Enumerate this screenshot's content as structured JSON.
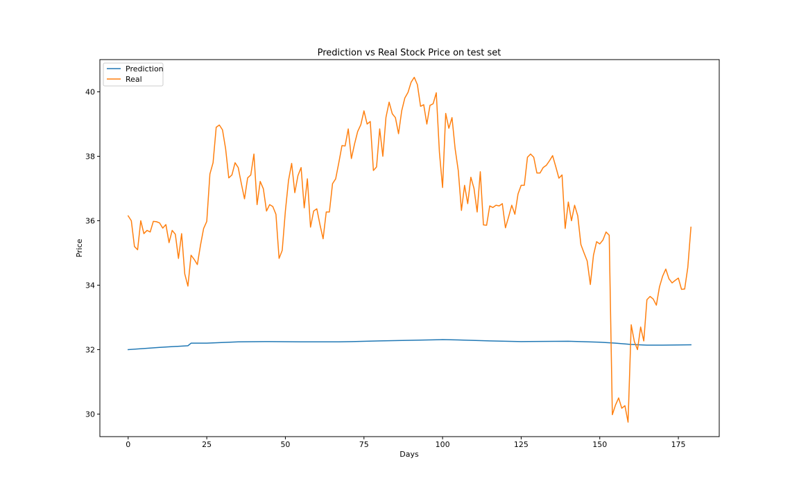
{
  "chart_data": {
    "type": "line",
    "title": "Prediction vs Real Stock Price on test set",
    "xlabel": "Days",
    "ylabel": "Price",
    "xlim": [
      -9,
      188
    ],
    "ylim": [
      29.3,
      41.0
    ],
    "xticks": [
      0,
      25,
      50,
      75,
      100,
      125,
      150,
      175
    ],
    "yticks": [
      30,
      32,
      34,
      36,
      38,
      40
    ],
    "grid": false,
    "legend_position": "top-left",
    "series": [
      {
        "name": "Prediction",
        "color": "#1f77b4",
        "points": [
          [
            0,
            32.0
          ],
          [
            10,
            32.07
          ],
          [
            19,
            32.12
          ],
          [
            20,
            32.2
          ],
          [
            25,
            32.2
          ],
          [
            35,
            32.24
          ],
          [
            45,
            32.25
          ],
          [
            55,
            32.24
          ],
          [
            67,
            32.24
          ],
          [
            80,
            32.27
          ],
          [
            90,
            32.29
          ],
          [
            100,
            32.31
          ],
          [
            105,
            32.3
          ],
          [
            115,
            32.27
          ],
          [
            125,
            32.25
          ],
          [
            140,
            32.26
          ],
          [
            150,
            32.23
          ],
          [
            155,
            32.2
          ],
          [
            160,
            32.16
          ],
          [
            165,
            32.14
          ],
          [
            170,
            32.14
          ],
          [
            179,
            32.15
          ]
        ]
      },
      {
        "name": "Real",
        "color": "#ff7f0e",
        "points": [
          [
            0,
            36.15
          ],
          [
            1,
            36.0
          ],
          [
            2,
            35.2
          ],
          [
            3,
            35.1
          ],
          [
            4,
            36.0
          ],
          [
            5,
            35.6
          ],
          [
            6,
            35.7
          ],
          [
            7,
            35.65
          ],
          [
            8,
            35.98
          ],
          [
            9,
            35.97
          ],
          [
            10,
            35.93
          ],
          [
            11,
            35.77
          ],
          [
            12,
            35.88
          ],
          [
            13,
            35.32
          ],
          [
            14,
            35.7
          ],
          [
            15,
            35.58
          ],
          [
            16,
            34.83
          ],
          [
            17,
            35.6
          ],
          [
            18,
            34.35
          ],
          [
            19,
            33.97
          ],
          [
            20,
            34.93
          ],
          [
            21,
            34.8
          ],
          [
            22,
            34.64
          ],
          [
            23,
            35.24
          ],
          [
            24,
            35.76
          ],
          [
            25,
            35.98
          ],
          [
            26,
            37.45
          ],
          [
            27,
            37.8
          ],
          [
            28,
            38.9
          ],
          [
            29,
            38.97
          ],
          [
            30,
            38.82
          ],
          [
            31,
            38.23
          ],
          [
            32,
            37.33
          ],
          [
            33,
            37.42
          ],
          [
            34,
            37.8
          ],
          [
            35,
            37.65
          ],
          [
            36,
            37.15
          ],
          [
            37,
            36.68
          ],
          [
            38,
            37.33
          ],
          [
            39,
            37.42
          ],
          [
            40,
            38.07
          ],
          [
            41,
            36.5
          ],
          [
            42,
            37.22
          ],
          [
            43,
            36.99
          ],
          [
            44,
            36.3
          ],
          [
            45,
            36.5
          ],
          [
            46,
            36.44
          ],
          [
            47,
            36.2
          ],
          [
            48,
            34.83
          ],
          [
            49,
            35.08
          ],
          [
            50,
            36.3
          ],
          [
            51,
            37.25
          ],
          [
            52,
            37.78
          ],
          [
            53,
            36.87
          ],
          [
            54,
            37.4
          ],
          [
            55,
            37.65
          ],
          [
            56,
            36.4
          ],
          [
            57,
            37.3
          ],
          [
            58,
            35.8
          ],
          [
            59,
            36.3
          ],
          [
            60,
            36.37
          ],
          [
            61,
            35.88
          ],
          [
            62,
            35.44
          ],
          [
            63,
            36.27
          ],
          [
            64,
            36.27
          ],
          [
            65,
            37.15
          ],
          [
            66,
            37.3
          ],
          [
            67,
            37.8
          ],
          [
            68,
            38.33
          ],
          [
            69,
            38.32
          ],
          [
            70,
            38.85
          ],
          [
            71,
            37.93
          ],
          [
            72,
            38.38
          ],
          [
            73,
            38.77
          ],
          [
            74,
            38.98
          ],
          [
            75,
            39.41
          ],
          [
            76,
            39.0
          ],
          [
            77,
            39.08
          ],
          [
            78,
            37.56
          ],
          [
            79,
            37.67
          ],
          [
            80,
            38.85
          ],
          [
            81,
            38.0
          ],
          [
            82,
            39.21
          ],
          [
            83,
            39.68
          ],
          [
            84,
            39.32
          ],
          [
            85,
            39.2
          ],
          [
            86,
            38.7
          ],
          [
            87,
            39.41
          ],
          [
            88,
            39.81
          ],
          [
            89,
            39.98
          ],
          [
            90,
            40.3
          ],
          [
            91,
            40.45
          ],
          [
            92,
            40.22
          ],
          [
            93,
            39.55
          ],
          [
            94,
            39.6
          ],
          [
            95,
            39.0
          ],
          [
            96,
            39.58
          ],
          [
            97,
            39.63
          ],
          [
            98,
            39.97
          ],
          [
            99,
            38.12
          ],
          [
            100,
            37.03
          ],
          [
            101,
            39.33
          ],
          [
            102,
            38.87
          ],
          [
            103,
            39.2
          ],
          [
            104,
            38.23
          ],
          [
            105,
            37.55
          ],
          [
            106,
            36.32
          ],
          [
            107,
            37.1
          ],
          [
            108,
            36.53
          ],
          [
            109,
            37.35
          ],
          [
            110,
            37.0
          ],
          [
            111,
            36.27
          ],
          [
            112,
            37.52
          ],
          [
            113,
            35.87
          ],
          [
            114,
            35.86
          ],
          [
            115,
            36.46
          ],
          [
            116,
            36.41
          ],
          [
            117,
            36.48
          ],
          [
            118,
            36.46
          ],
          [
            119,
            36.53
          ],
          [
            120,
            35.78
          ],
          [
            121,
            36.12
          ],
          [
            122,
            36.48
          ],
          [
            123,
            36.2
          ],
          [
            124,
            36.83
          ],
          [
            125,
            37.1
          ],
          [
            126,
            37.1
          ],
          [
            127,
            37.97
          ],
          [
            128,
            38.07
          ],
          [
            129,
            37.97
          ],
          [
            130,
            37.48
          ],
          [
            131,
            37.48
          ],
          [
            132,
            37.65
          ],
          [
            133,
            37.72
          ],
          [
            134,
            37.86
          ],
          [
            135,
            38.02
          ],
          [
            136,
            37.68
          ],
          [
            137,
            37.32
          ],
          [
            138,
            37.42
          ],
          [
            139,
            35.76
          ],
          [
            140,
            36.58
          ],
          [
            141,
            36.0
          ],
          [
            142,
            36.48
          ],
          [
            143,
            36.15
          ],
          [
            144,
            35.26
          ],
          [
            145,
            35.0
          ],
          [
            146,
            34.75
          ],
          [
            147,
            34.02
          ],
          [
            148,
            34.93
          ],
          [
            149,
            35.35
          ],
          [
            150,
            35.28
          ],
          [
            151,
            35.4
          ],
          [
            152,
            35.65
          ],
          [
            153,
            35.55
          ],
          [
            154,
            29.98
          ],
          [
            155,
            30.28
          ],
          [
            156,
            30.5
          ],
          [
            157,
            30.18
          ],
          [
            158,
            30.26
          ],
          [
            159,
            29.75
          ],
          [
            160,
            32.77
          ],
          [
            161,
            32.25
          ],
          [
            162,
            32.0
          ],
          [
            163,
            32.7
          ],
          [
            164,
            32.27
          ],
          [
            165,
            33.55
          ],
          [
            166,
            33.65
          ],
          [
            167,
            33.57
          ],
          [
            168,
            33.38
          ],
          [
            169,
            33.95
          ],
          [
            170,
            34.28
          ],
          [
            171,
            34.5
          ],
          [
            172,
            34.2
          ],
          [
            173,
            34.07
          ],
          [
            174,
            34.15
          ],
          [
            175,
            34.22
          ],
          [
            176,
            33.87
          ],
          [
            177,
            33.88
          ],
          [
            178,
            34.55
          ],
          [
            179,
            35.8
          ]
        ]
      }
    ]
  }
}
